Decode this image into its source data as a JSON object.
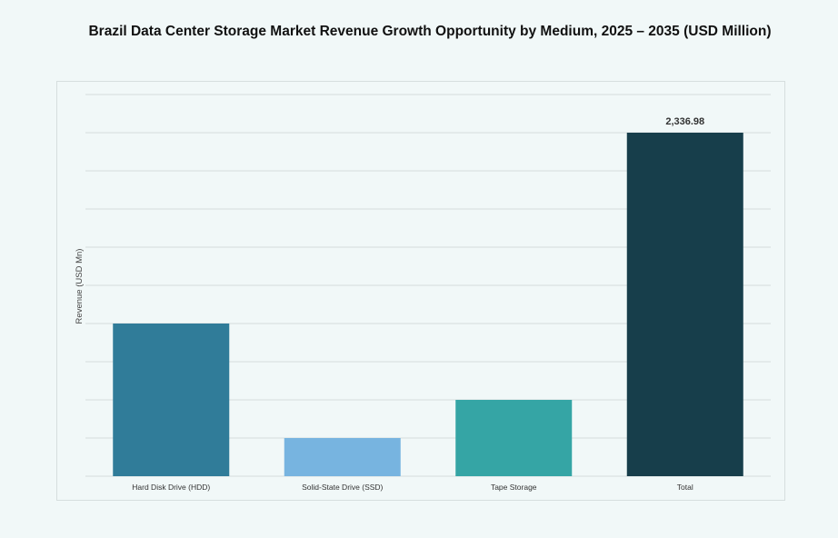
{
  "chart_data": {
    "type": "bar",
    "title": "Brazil Data Center Storage Market Revenue Growth Opportunity by Medium, 2025 – 2035 (USD Million)",
    "xlabel": "",
    "ylabel": "Revenue (USD Mn)",
    "categories": [
      "Hard Disk Drive (HDD)",
      "Solid-State Drive (SSD)",
      "Tape Storage",
      "Total"
    ],
    "values": [
      1038.7,
      259.7,
      519.3,
      2336.98
    ],
    "data_labels": [
      "",
      "",
      "",
      "2,336.98"
    ],
    "colors": [
      "#307c99",
      "#77b4e0",
      "#35a5a5",
      "#173e4b"
    ],
    "ylim": [
      0,
      2596.6
    ],
    "grid": true,
    "gridline_count": 10
  }
}
